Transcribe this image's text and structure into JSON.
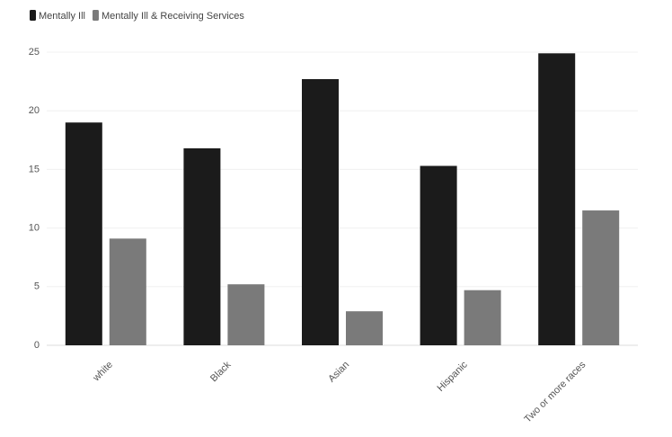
{
  "chart_data": {
    "type": "bar",
    "categories": [
      "white",
      "Black",
      "Asian",
      "Hispanic",
      "Two or more races"
    ],
    "series": [
      {
        "name": "Mentally Ill",
        "color": "#1b1b1b",
        "values": [
          19.0,
          16.8,
          22.7,
          15.3,
          24.9
        ]
      },
      {
        "name": "Mentally Ill & Receiving Services",
        "color": "#7a7a7a",
        "values": [
          9.1,
          5.2,
          2.9,
          4.7,
          11.5
        ]
      }
    ],
    "ylim": [
      0,
      25
    ],
    "yticks": [
      0,
      5,
      10,
      15,
      20,
      25
    ],
    "grid": true,
    "legend": "top-left"
  }
}
